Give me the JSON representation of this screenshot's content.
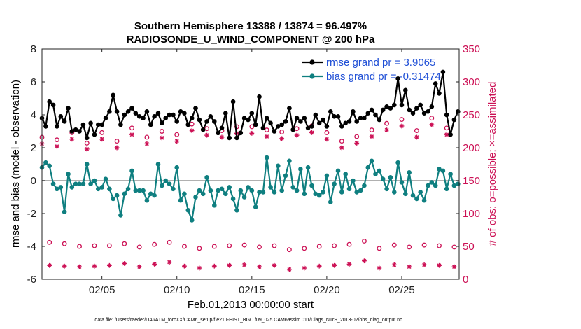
{
  "chart_data": {
    "type": "line",
    "title_line1": "Southern Hemisphere 13388 / 13874 = 96.497%",
    "title_line2": "RADIOSONDE_U_WIND_COMPONENT @ 200 hPa",
    "ylabel": "rmse and bias (model - observation)",
    "ylabel_right": "# of obs: o=possible; ×=assimilated",
    "xlabel": "Feb.01,2013 00:00:00 start",
    "footer": "data file: /Users/raeder/DAI/ATM_forcXX/CAM6_setup/f.e21.FHIST_BGC.f09_025.CAM6assim.011/Diags_NTrS_2013-02/obs_diag_output.nc",
    "ylim": [
      -6,
      8
    ],
    "yticks": [
      "-6",
      "-4",
      "-2",
      "0",
      "2",
      "4",
      "6",
      "8"
    ],
    "ylim_right": [
      0,
      350
    ],
    "yticks_right": [
      "0",
      "50",
      "100",
      "150",
      "200",
      "250",
      "300",
      "350"
    ],
    "xlim": [
      1,
      28.83
    ],
    "xticks": [
      5,
      10,
      15,
      20,
      25
    ],
    "xtick_labels": [
      "02/05",
      "02/10",
      "02/15",
      "02/20",
      "02/25"
    ],
    "x_start": 1.0,
    "x_step": 0.25,
    "colors": {
      "rmse": "#000000",
      "bias": "#0f7f80",
      "obs": "#cc1155",
      "zero": "#b0b0b0"
    },
    "series": [
      {
        "name": "rmse",
        "legend": "rmse grand pr = 3.9065",
        "values": [
          3.8,
          3.3,
          4.8,
          4.6,
          3.3,
          3.9,
          3.6,
          4.4,
          3.0,
          3.1,
          3.0,
          3.4,
          2.6,
          3.5,
          2.8,
          3.4,
          3.4,
          3.8,
          4.2,
          5.2,
          4.2,
          3.4,
          4.0,
          4.2,
          4.4,
          4.1,
          3.9,
          3.8,
          4.2,
          3.4,
          3.9,
          4.1,
          3.5,
          3.8,
          4.0,
          4.0,
          3.6,
          4.2,
          4.1,
          3.4,
          3.8,
          4.4,
          3.7,
          3.1,
          3.6,
          3.9,
          3.6,
          2.9,
          3.2,
          4.1,
          2.6,
          4.8,
          2.6,
          2.9,
          3.8,
          3.7,
          4.1,
          3.4,
          5.1,
          3.2,
          3.8,
          3.5,
          3.0,
          3.3,
          3.4,
          3.6,
          4.4,
          3.1,
          3.8,
          3.6,
          3.8,
          3.2,
          3.3,
          4.0,
          3.5,
          3.7,
          3.3,
          4.2,
          3.9,
          3.9,
          3.3,
          3.5,
          3.6,
          4.2,
          3.6,
          3.8,
          3.8,
          4.1,
          4.3,
          4.0,
          3.7,
          4.3,
          4.5,
          4.4,
          4.6,
          6.2,
          4.6,
          5.5,
          4.3,
          4.1,
          4.4,
          4.6,
          4.1,
          4.2,
          4.5,
          5.9,
          5.3,
          6.6,
          4.0,
          2.8,
          3.7,
          4.2
        ]
      },
      {
        "name": "bias",
        "legend": "bias grand pr = -0.31474",
        "values": [
          0.8,
          1.1,
          0.9,
          -0.2,
          -0.5,
          -0.4,
          -1.9,
          0.4,
          -0.4,
          -0.2,
          -0.2,
          -0.2,
          1.0,
          -0.2,
          0.0,
          -0.5,
          -0.4,
          0.1,
          -0.5,
          -1.1,
          -0.9,
          -2.1,
          -0.8,
          -0.5,
          0.6,
          -0.6,
          -0.6,
          -0.6,
          -1.2,
          -0.8,
          -0.9,
          1.0,
          -0.3,
          0.0,
          -0.2,
          -0.5,
          0.8,
          -1.2,
          -0.8,
          -1.8,
          -2.4,
          -1.0,
          -0.6,
          -0.8,
          0.2,
          -0.6,
          -1.5,
          -0.6,
          -0.5,
          -0.8,
          -0.4,
          -1.1,
          -1.8,
          -0.6,
          -1.0,
          -0.4,
          -0.6,
          -1.6,
          -0.7,
          -0.7,
          1.4,
          -0.4,
          -0.7,
          0.9,
          -0.6,
          0.3,
          1.2,
          -0.4,
          -0.6,
          0.7,
          -0.8,
          0.8,
          -0.3,
          -0.8,
          -0.9,
          -0.7,
          0.3,
          -1.3,
          -0.2,
          0.6,
          -0.7,
          0.4,
          -0.5,
          0.0,
          -0.7,
          -0.6,
          -0.3,
          0.8,
          1.2,
          0.4,
          0.6,
          0.1,
          -0.5,
          0.2,
          -0.7,
          1.1,
          -0.1,
          -0.8,
          0.5,
          -0.9,
          -1.1,
          -0.7,
          -1.2,
          -0.3,
          -0.1,
          -0.3,
          0.7,
          0.6,
          -0.5,
          0.4,
          -0.3,
          -0.2
        ]
      }
    ],
    "obs_possible": [
      {
        "x": 1.0,
        "v": 216
      },
      {
        "x": 1.5,
        "v": 56
      },
      {
        "x": 2.0,
        "v": 212
      },
      {
        "x": 2.5,
        "v": 54
      },
      {
        "x": 3.0,
        "v": 223
      },
      {
        "x": 3.5,
        "v": 50
      },
      {
        "x": 4.0,
        "v": 207
      },
      {
        "x": 4.5,
        "v": 51
      },
      {
        "x": 5.0,
        "v": 223
      },
      {
        "x": 5.5,
        "v": 51
      },
      {
        "x": 6.0,
        "v": 210
      },
      {
        "x": 6.5,
        "v": 54
      },
      {
        "x": 7.0,
        "v": 230
      },
      {
        "x": 7.5,
        "v": 49
      },
      {
        "x": 8.0,
        "v": 216
      },
      {
        "x": 8.5,
        "v": 53
      },
      {
        "x": 9.0,
        "v": 225
      },
      {
        "x": 9.5,
        "v": 56
      },
      {
        "x": 10.0,
        "v": 220
      },
      {
        "x": 10.5,
        "v": 50
      },
      {
        "x": 11.0,
        "v": 236
      },
      {
        "x": 11.5,
        "v": 47
      },
      {
        "x": 12.0,
        "v": 229
      },
      {
        "x": 12.5,
        "v": 50
      },
      {
        "x": 13.0,
        "v": 226
      },
      {
        "x": 13.5,
        "v": 51
      },
      {
        "x": 14.0,
        "v": 232
      },
      {
        "x": 14.5,
        "v": 52
      },
      {
        "x": 15.0,
        "v": 232
      },
      {
        "x": 15.5,
        "v": 49
      },
      {
        "x": 16.0,
        "v": 227
      },
      {
        "x": 16.5,
        "v": 51
      },
      {
        "x": 17.0,
        "v": 224
      },
      {
        "x": 17.5,
        "v": 45
      },
      {
        "x": 18.0,
        "v": 229
      },
      {
        "x": 18.5,
        "v": 47
      },
      {
        "x": 19.0,
        "v": 233
      },
      {
        "x": 19.5,
        "v": 50
      },
      {
        "x": 20.0,
        "v": 223
      },
      {
        "x": 20.5,
        "v": 51
      },
      {
        "x": 21.0,
        "v": 210
      },
      {
        "x": 21.5,
        "v": 53
      },
      {
        "x": 22.0,
        "v": 217
      },
      {
        "x": 22.5,
        "v": 58
      },
      {
        "x": 23.0,
        "v": 227
      },
      {
        "x": 23.5,
        "v": 47
      },
      {
        "x": 24.0,
        "v": 237
      },
      {
        "x": 24.5,
        "v": 52
      },
      {
        "x": 25.0,
        "v": 243
      },
      {
        "x": 25.5,
        "v": 49
      },
      {
        "x": 26.0,
        "v": 226
      },
      {
        "x": 26.5,
        "v": 52
      },
      {
        "x": 27.0,
        "v": 245
      },
      {
        "x": 27.5,
        "v": 51
      },
      {
        "x": 28.0,
        "v": 230
      },
      {
        "x": 28.5,
        "v": 49
      }
    ],
    "obs_assimilated": [
      {
        "x": 1.0,
        "v": 206
      },
      {
        "x": 1.5,
        "v": 21
      },
      {
        "x": 2.0,
        "v": 202
      },
      {
        "x": 2.5,
        "v": 20
      },
      {
        "x": 3.0,
        "v": 213
      },
      {
        "x": 3.5,
        "v": 19
      },
      {
        "x": 4.0,
        "v": 198
      },
      {
        "x": 4.5,
        "v": 20
      },
      {
        "x": 5.0,
        "v": 213
      },
      {
        "x": 5.5,
        "v": 21
      },
      {
        "x": 6.0,
        "v": 200
      },
      {
        "x": 6.5,
        "v": 24
      },
      {
        "x": 7.0,
        "v": 220
      },
      {
        "x": 7.5,
        "v": 19
      },
      {
        "x": 8.0,
        "v": 206
      },
      {
        "x": 8.5,
        "v": 23
      },
      {
        "x": 9.0,
        "v": 215
      },
      {
        "x": 9.5,
        "v": 26
      },
      {
        "x": 10.0,
        "v": 210
      },
      {
        "x": 10.5,
        "v": 20
      },
      {
        "x": 11.0,
        "v": 226
      },
      {
        "x": 11.5,
        "v": 17
      },
      {
        "x": 12.0,
        "v": 219
      },
      {
        "x": 12.5,
        "v": 20
      },
      {
        "x": 13.0,
        "v": 216
      },
      {
        "x": 13.5,
        "v": 21
      },
      {
        "x": 14.0,
        "v": 222
      },
      {
        "x": 14.5,
        "v": 22
      },
      {
        "x": 15.0,
        "v": 222
      },
      {
        "x": 15.5,
        "v": 19
      },
      {
        "x": 16.0,
        "v": 217
      },
      {
        "x": 16.5,
        "v": 21
      },
      {
        "x": 17.0,
        "v": 214
      },
      {
        "x": 17.5,
        "v": 15
      },
      {
        "x": 18.0,
        "v": 219
      },
      {
        "x": 18.5,
        "v": 17
      },
      {
        "x": 19.0,
        "v": 223
      },
      {
        "x": 19.5,
        "v": 20
      },
      {
        "x": 20.0,
        "v": 213
      },
      {
        "x": 20.5,
        "v": 21
      },
      {
        "x": 21.0,
        "v": 200
      },
      {
        "x": 21.5,
        "v": 23
      },
      {
        "x": 22.0,
        "v": 207
      },
      {
        "x": 22.5,
        "v": 28
      },
      {
        "x": 23.0,
        "v": 217
      },
      {
        "x": 23.5,
        "v": 17
      },
      {
        "x": 24.0,
        "v": 227
      },
      {
        "x": 24.5,
        "v": 22
      },
      {
        "x": 25.0,
        "v": 233
      },
      {
        "x": 25.5,
        "v": 19
      },
      {
        "x": 26.0,
        "v": 216
      },
      {
        "x": 26.5,
        "v": 22
      },
      {
        "x": 27.0,
        "v": 235
      },
      {
        "x": 27.5,
        "v": 21
      },
      {
        "x": 28.0,
        "v": 220
      },
      {
        "x": 28.5,
        "v": 19
      }
    ]
  }
}
